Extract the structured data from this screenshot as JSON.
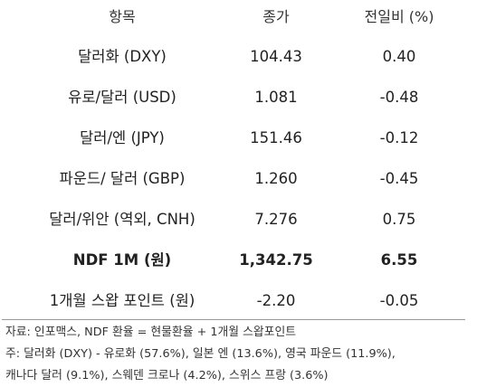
{
  "table": {
    "headers": [
      "항목",
      "종가",
      "전일비 (%)"
    ],
    "rows": [
      {
        "item": "달러화 (DXY)",
        "close": "104.43",
        "change": "0.40"
      },
      {
        "item": "유로/달러 (USD)",
        "close": "1.081",
        "change": "-0.48"
      },
      {
        "item": "달러/엔 (JPY)",
        "close": "151.46",
        "change": "-0.12"
      },
      {
        "item": "파운드/ 달러 (GBP)",
        "close": "1.260",
        "change": "-0.45"
      },
      {
        "item": "달러/위안 (역외, CNH)",
        "close": "7.276",
        "change": "0.75"
      },
      {
        "item": "NDF 1M (원)",
        "close": "1,342.75",
        "change": "6.55"
      },
      {
        "item": "1개월 스왑 포인트 (원)",
        "close": "-2.20",
        "change": "-0.05"
      }
    ]
  },
  "notes": {
    "source": "자료: 인포맥스, NDF 환율 = 현물환율 + 1개월 스왑포인트",
    "note_line1": "주: 달러화 (DXY) - 유로화 (57.6%), 일본 엔 (13.6%), 영국 파운드 (11.9%),",
    "note_line2": "캐나다 달러 (9.1%), 스웨덴 크로나 (4.2%), 스위스 프랑 (3.6%)"
  }
}
